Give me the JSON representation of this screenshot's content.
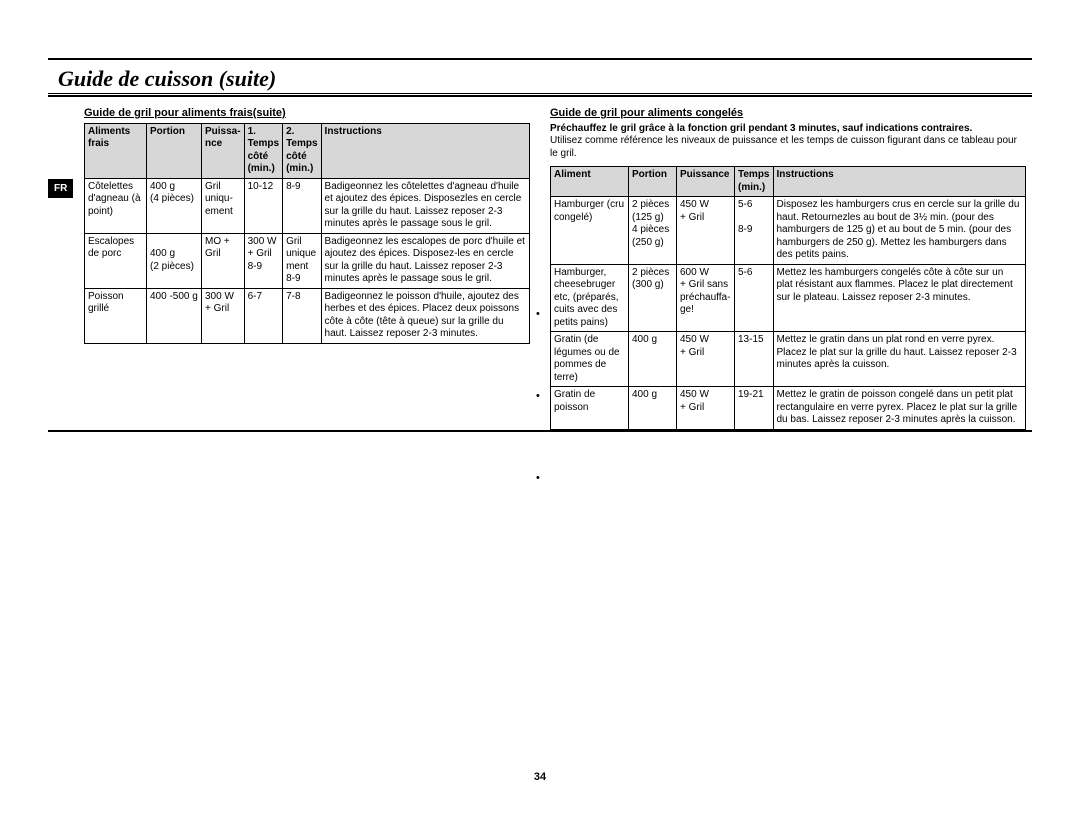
{
  "lang_tab": "FR",
  "title": "Guide de cuisson (suite)",
  "page_number": "34",
  "left": {
    "section_title": "Guide de gril pour aliments frais(suite)",
    "headers": {
      "aliment": "Aliments frais",
      "portion": "Portion",
      "puissance": "Puissa-nce",
      "temps1": "1. Temps côté (min.)",
      "temps2": "2. Temps côté (min.)",
      "instructions": "Instructions"
    },
    "rows": [
      {
        "aliment": "Côtelettes d'agneau (à point)",
        "portion": "400 g\n(4 pièces)",
        "puissance": "Gril uniqu-ement",
        "t1": "10-12",
        "t2": "8-9",
        "instr": "Badigeonnez les côtelettes d'agneau d'huile et ajoutez des épices. Disposezles en cercle sur la grille du haut. Laissez reposer 2-3 minutes après le passage sous le gril."
      },
      {
        "aliment": "Escalopes de porc",
        "portion": "\n400 g\n(2 pièces)",
        "puissance": "MO + Gril",
        "t1": "300 W\n+ Gril\n8-9",
        "t2": "Gril unique ment\n8-9",
        "instr": "Badigeonnez les escalopes de porc d'huile et ajoutez des épices. Disposez-les en cercle sur la grille du haut. Laissez reposer 2-3 minutes après le passage sous le gril."
      },
      {
        "aliment": "Poisson grillé",
        "portion": "400 -500 g",
        "puissance": "300 W\n+ Gril",
        "t1": "6-7",
        "t2": "7-8",
        "instr": "Badigeonnez le poisson d'huile, ajoutez des herbes et des épices. Placez deux poissons côte à côte (tête à queue) sur la grille du haut. Laissez reposer 2-3 minutes."
      }
    ]
  },
  "right": {
    "section_title": "Guide de gril pour aliments congelés",
    "intro_bold": "Préchauffez le gril grâce à la fonction gril pendant 3 minutes, sauf indications contraires.",
    "intro_regular": "Utilisez comme référence les niveaux de puissance et les temps de cuisson figurant dans ce tableau pour le gril.",
    "headers": {
      "aliment": "Aliment",
      "portion": "Portion",
      "puissance": "Puissance",
      "temps": "Temps (min.)",
      "instructions": "Instructions"
    },
    "rows": [
      {
        "aliment": "Hamburger (cru congelé)",
        "portion": "2 pièces\n(125 g)\n4 pièces\n(250 g)",
        "puissance": "450 W\n+ Gril",
        "temps": "5-6\n\n8-9",
        "instr": "Disposez les hamburgers crus en cercle sur la grille du haut. Retournezles au bout de 3½ min. (pour des hamburgers de 125 g) et au bout de 5 min. (pour des hamburgers de 250 g). Mettez les hamburgers dans des petits pains."
      },
      {
        "aliment": "Hamburger, cheesebruger etc, (préparés, cuits avec des petits pains)",
        "portion": "2 pièces\n(300 g)",
        "puissance": "600 W\n+ Gril sans préchauffa-ge!",
        "temps": "5-6",
        "instr": "Mettez les hamburgers congelés côte à côte sur un plat résistant aux flammes. Placez le plat directement sur le plateau. Laissez reposer 2-3 minutes."
      },
      {
        "aliment": "Gratin (de légumes ou de pommes de terre)",
        "portion": "400 g",
        "puissance": "450 W\n+ Gril",
        "temps": "13-15",
        "instr": "Mettez le gratin dans un plat rond en verre pyrex. Placez le plat sur la grille du haut. Laissez reposer 2-3 minutes après la cuisson."
      },
      {
        "aliment": "Gratin de poisson",
        "portion": "400 g",
        "puissance": "450 W\n+ Gril",
        "temps": "19-21",
        "instr": "Mettez le gratin de poisson congelé dans un petit plat rectangulaire en verre pyrex. Placez le plat sur la grille du bas. Laissez reposer 2-3 minutes après la cuisson."
      }
    ]
  }
}
